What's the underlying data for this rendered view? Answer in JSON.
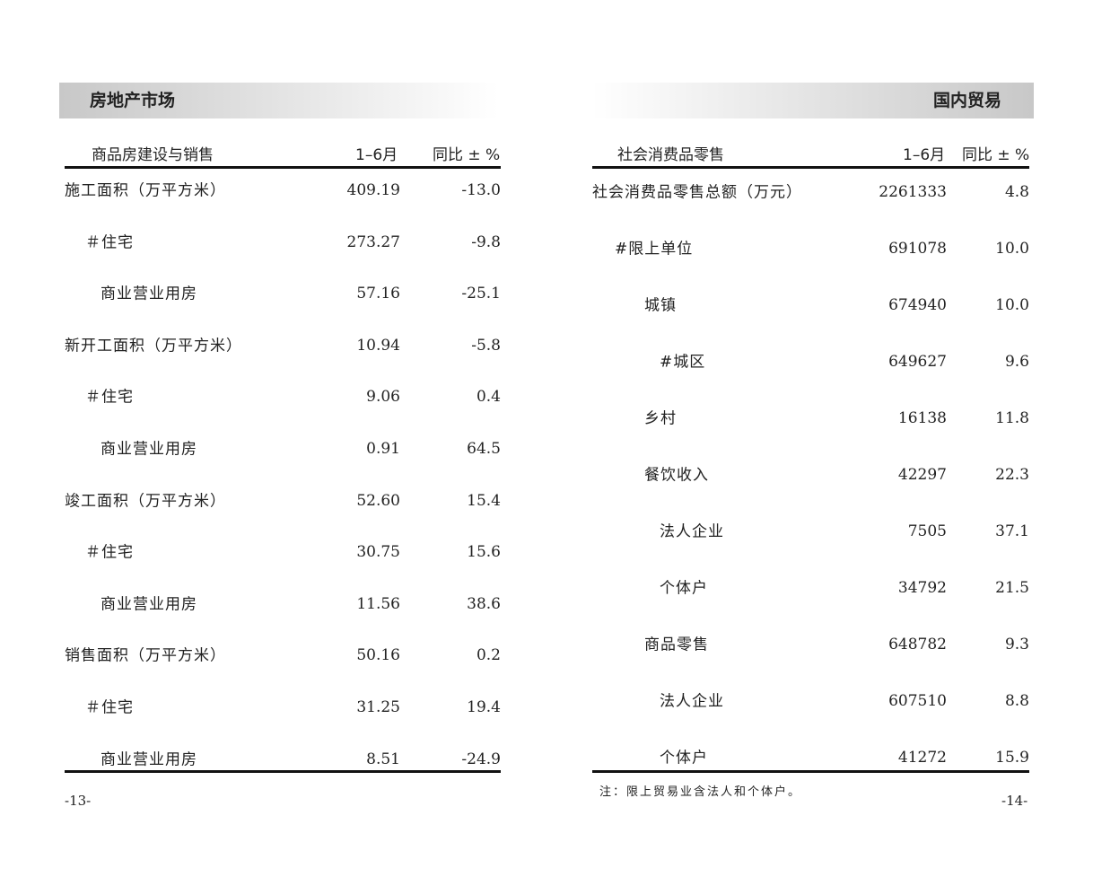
{
  "left": {
    "section_title": "房地产市场",
    "headers": [
      "商品房建设与销售",
      "1–6月",
      "同比 ± %"
    ],
    "rows": [
      {
        "label": "施工面积（万平方米）",
        "value": "409.19",
        "yoy": "-13.0",
        "level": 0
      },
      {
        "label": "＃住宅",
        "value": "273.27",
        "yoy": "-9.8",
        "level": 1
      },
      {
        "label": "商业营业用房",
        "value": "57.16",
        "yoy": "-25.1",
        "level": 2
      },
      {
        "label": "新开工面积（万平方米）",
        "value": "10.94",
        "yoy": "-5.8",
        "level": 0
      },
      {
        "label": "＃住宅",
        "value": "9.06",
        "yoy": "0.4",
        "level": 1
      },
      {
        "label": "商业营业用房",
        "value": "0.91",
        "yoy": "64.5",
        "level": 2
      },
      {
        "label": "竣工面积（万平方米）",
        "value": "52.60",
        "yoy": "15.4",
        "level": 0
      },
      {
        "label": "＃住宅",
        "value": "30.75",
        "yoy": "15.6",
        "level": 1
      },
      {
        "label": "商业营业用房",
        "value": "11.56",
        "yoy": "38.6",
        "level": 2
      },
      {
        "label": "销售面积（万平方米）",
        "value": "50.16",
        "yoy": "0.2",
        "level": 0
      },
      {
        "label": "＃住宅",
        "value": "31.25",
        "yoy": "19.4",
        "level": 1
      },
      {
        "label": "商业营业用房",
        "value": "8.51",
        "yoy": "-24.9",
        "level": 2
      }
    ],
    "page": "-13-"
  },
  "right": {
    "section_title": "国内贸易",
    "headers": [
      "社会消费品零售",
      "1–6月",
      "同比 ± %"
    ],
    "rows": [
      {
        "label": "社会消费品零售总额（万元）",
        "value": "2261333",
        "yoy": "4.8",
        "level": 0
      },
      {
        "label": "#限上单位",
        "value": "691078",
        "yoy": "10.0",
        "level": 1
      },
      {
        "label": "城镇",
        "value": "674940",
        "yoy": "10.0",
        "level": 2
      },
      {
        "label": "#城区",
        "value": "649627",
        "yoy": "9.6",
        "level": 3
      },
      {
        "label": "乡村",
        "value": "16138",
        "yoy": "11.8",
        "level": 2
      },
      {
        "label": "餐饮收入",
        "value": "42297",
        "yoy": "22.3",
        "level": 2
      },
      {
        "label": "法人企业",
        "value": "7505",
        "yoy": "37.1",
        "level": 3
      },
      {
        "label": "个体户",
        "value": "34792",
        "yoy": "21.5",
        "level": 3
      },
      {
        "label": "商品零售",
        "value": "648782",
        "yoy": "9.3",
        "level": 2
      },
      {
        "label": "法人企业",
        "value": "607510",
        "yoy": "8.8",
        "level": 3
      },
      {
        "label": "个体户",
        "value": "41272",
        "yoy": "15.9",
        "level": 3
      }
    ],
    "note": "注：限上贸易业含法人和个体户。",
    "page": "-14-"
  }
}
